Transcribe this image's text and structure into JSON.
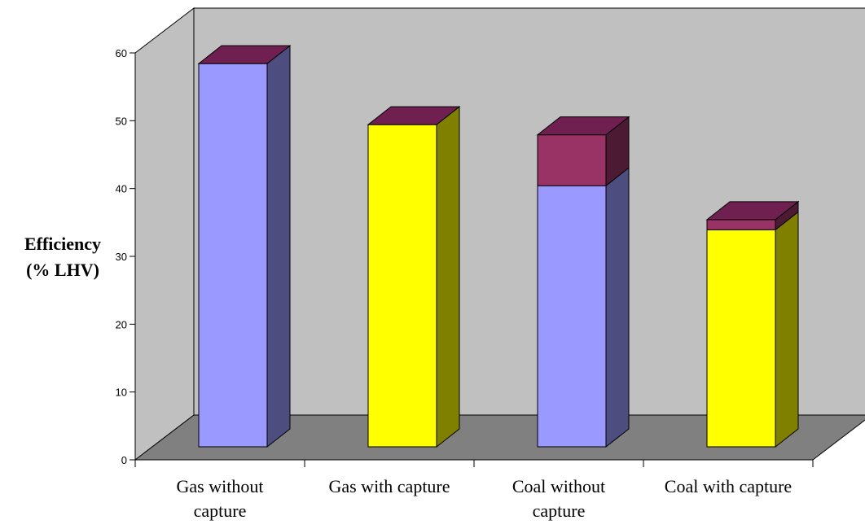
{
  "chart_data": {
    "type": "bar",
    "stacked": true,
    "three_d": true,
    "categories": [
      "Gas without\ncapture",
      "Gas with capture",
      "Coal without\ncapture",
      "Coal with capture"
    ],
    "series": [
      {
        "values": [
          56.5,
          47.5,
          38.5,
          32
        ],
        "colors": [
          "#9999FF",
          "#FFFF00",
          "#9999FF",
          "#FFFF00"
        ]
      },
      {
        "values": [
          0,
          0,
          7.5,
          1.5
        ],
        "color": "#993366"
      }
    ],
    "ylabel": [
      "Efficiency",
      "(% LHV)"
    ],
    "ylim": [
      0,
      60
    ],
    "yticks": [
      0,
      10,
      20,
      30,
      40,
      50,
      60
    ],
    "grid": false,
    "legend": "none",
    "colors": {
      "back_wall": "#C0C0C0",
      "floor": "#808080",
      "top_face": "#702050"
    }
  }
}
